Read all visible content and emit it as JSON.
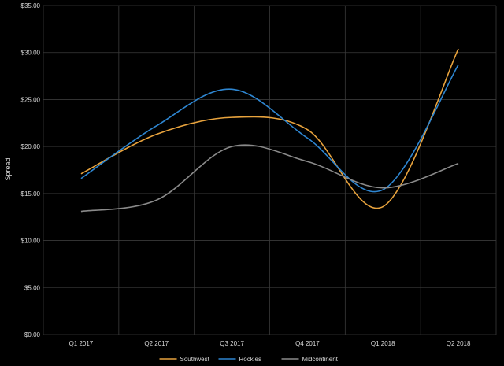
{
  "chart_data": {
    "type": "line",
    "categories": [
      "Q1 2017",
      "Q2 2017",
      "Q3 2017",
      "Q4 2017",
      "Q1 2018",
      "Q2 2018"
    ],
    "y_ticks": [
      "$0.00",
      "$5.00",
      "$10.00",
      "$15.00",
      "$20.00",
      "$25.00",
      "$30.00",
      "$35.00"
    ],
    "ylabel": "Spread",
    "ylim": [
      0,
      35
    ],
    "grid": true,
    "legend_position": "bottom",
    "smooth": true,
    "series": [
      {
        "name": "Southwest",
        "color": "#E8A33D",
        "values": [
          17.1,
          21.3,
          23.1,
          21.8,
          13.6,
          30.4
        ]
      },
      {
        "name": "Rockies",
        "color": "#2E86D1",
        "values": [
          16.6,
          22.2,
          26.1,
          20.9,
          15.4,
          28.7
        ]
      },
      {
        "name": "Midcontinent",
        "color": "#8A8A8A",
        "values": [
          13.1,
          14.3,
          20.0,
          18.4,
          15.6,
          18.2
        ]
      }
    ]
  }
}
